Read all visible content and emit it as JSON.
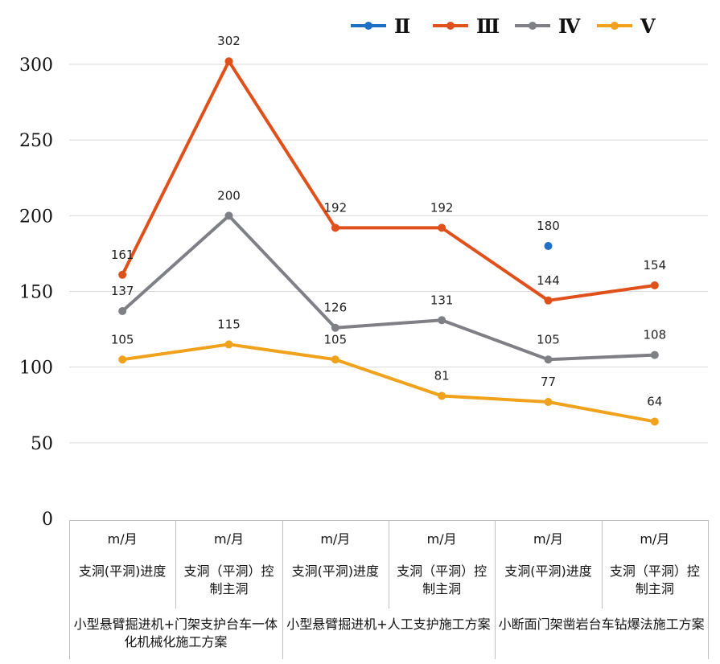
{
  "chart_data": {
    "type": "line",
    "ylim": [
      0,
      300
    ],
    "yticks": [
      0,
      50,
      100,
      150,
      200,
      250,
      300
    ],
    "grid": true,
    "legend_position": "top-right",
    "categories": [
      {
        "unit": "m/月",
        "metric": "支洞(平洞)进度"
      },
      {
        "unit": "m/月",
        "metric": "支洞（平洞）控制主洞"
      },
      {
        "unit": "m/月",
        "metric": "支洞(平洞)进度"
      },
      {
        "unit": "m/月",
        "metric": "支洞（平洞）控制主洞"
      },
      {
        "unit": "m/月",
        "metric": "支洞(平洞)进度"
      },
      {
        "unit": "m/月",
        "metric": "支洞（平洞）控制主洞"
      }
    ],
    "groups": [
      "小型悬臂掘进机+门架支护台车一体化机械化施工方案",
      "小型悬臂掘进机+人工支护施工方案",
      "小断面门架凿岩台车钻爆法施工方案"
    ],
    "series": [
      {
        "name": "Ⅱ",
        "color": "#1f6fc4",
        "values": [
          null,
          null,
          null,
          null,
          180,
          null
        ]
      },
      {
        "name": "Ⅲ",
        "color": "#e0501b",
        "values": [
          161,
          302,
          192,
          192,
          144,
          154
        ]
      },
      {
        "name": "Ⅳ",
        "color": "#7f7f86",
        "values": [
          137,
          200,
          126,
          131,
          105,
          108
        ]
      },
      {
        "name": "Ⅴ",
        "color": "#f0a21c",
        "values": [
          105,
          115,
          105,
          81,
          77,
          64
        ]
      }
    ]
  }
}
